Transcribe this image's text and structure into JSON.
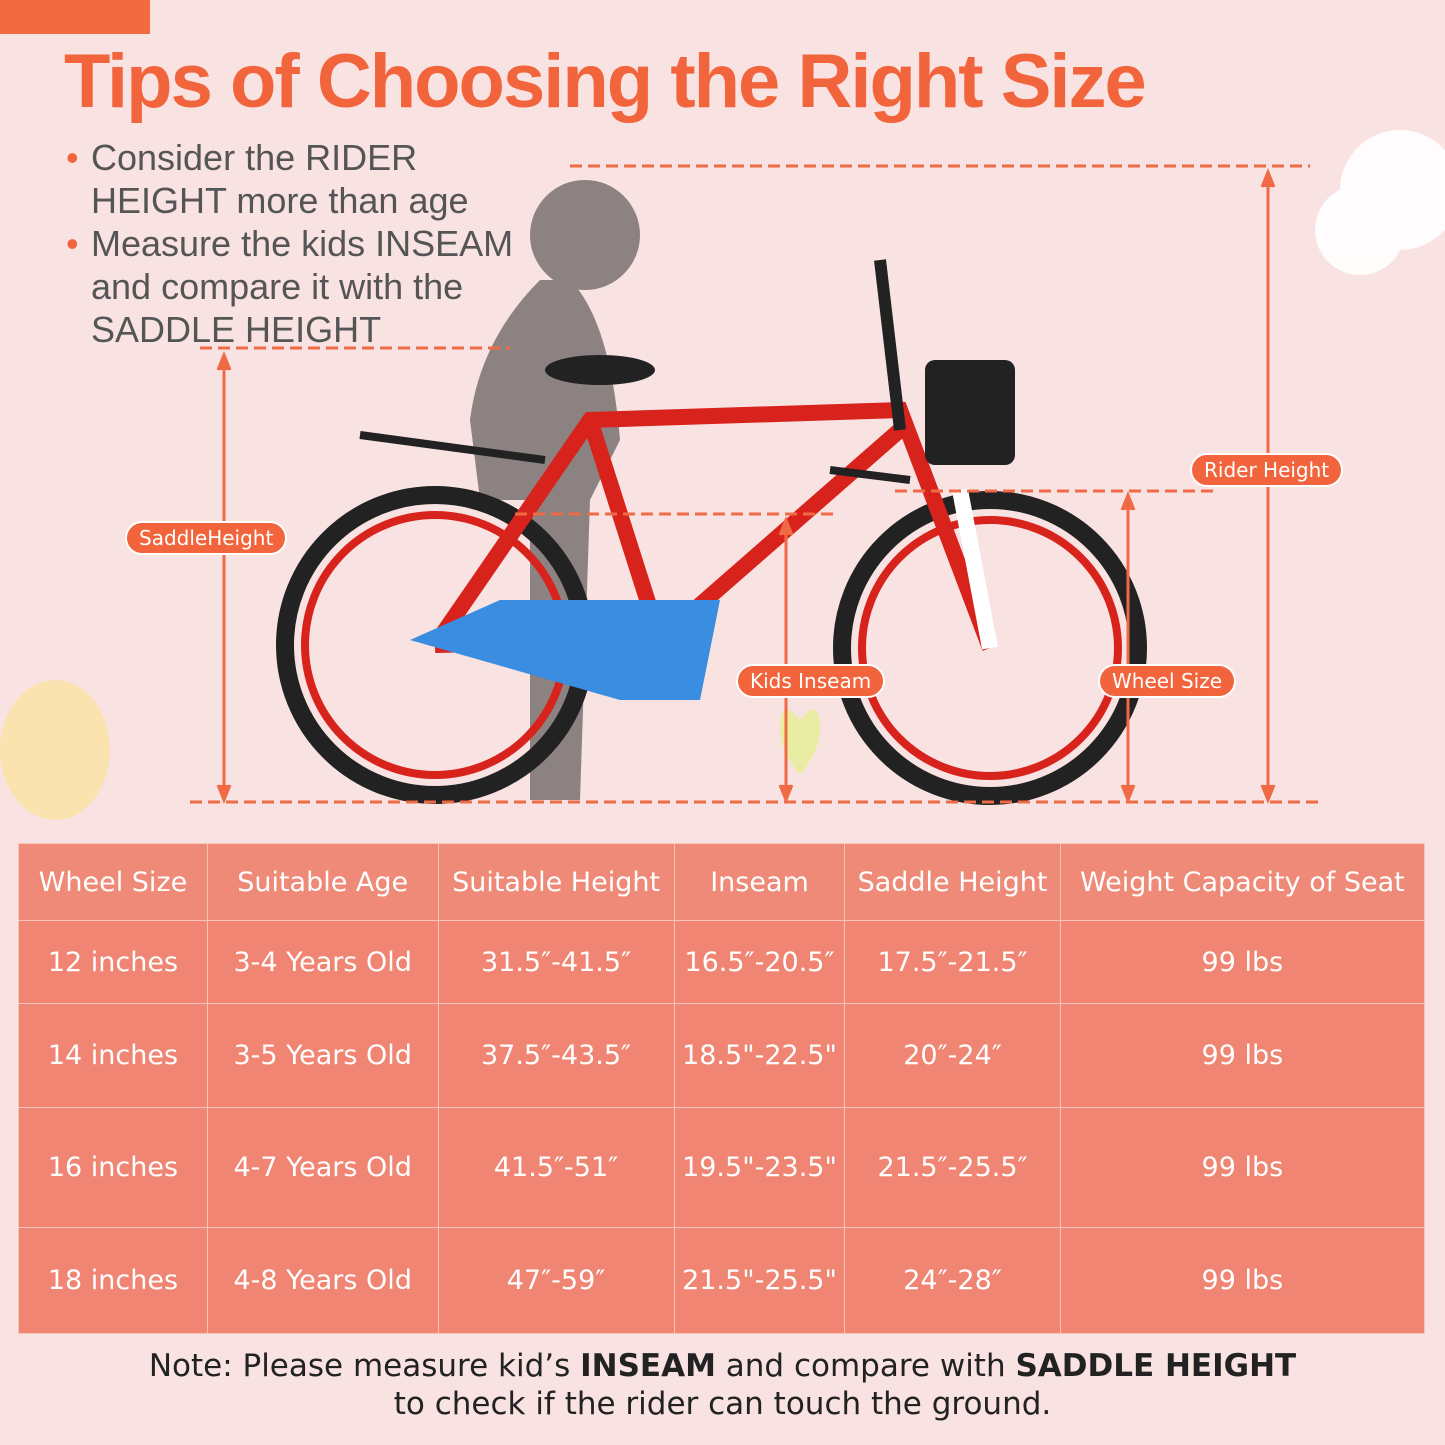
{
  "header": {
    "title": "Tips of Choosing the Right Size",
    "bullets": [
      "Consider the RIDER HEIGHT more than age",
      "Measure the kids INSEAM and compare it with the SADDLE HEIGHT"
    ]
  },
  "labels": {
    "saddle_height": "SaddleHeight",
    "kids_inseam": "Kids Inseam",
    "wheel_size": "Wheel Size",
    "rider_height": "Rider Height"
  },
  "table": {
    "header": [
      "Wheel Size",
      "Suitable Age",
      "Suitable Height",
      "Inseam",
      "Saddle Height",
      "Weight Capacity of Seat"
    ],
    "rows": [
      [
        "12 inches",
        "3-4 Years Old",
        "31.5″-41.5″",
        "16.5″-20.5″",
        "17.5″-21.5″",
        "99 lbs"
      ],
      [
        "14 inches",
        "3-5 Years Old",
        "37.5″-43.5″",
        "18.5\"-22.5\"",
        "20″-24″",
        "99 lbs"
      ],
      [
        "16 inches",
        "4-7 Years Old",
        "41.5″-51″",
        "19.5\"-23.5\"",
        "21.5″-25.5″",
        "99 lbs"
      ],
      [
        "18 inches",
        "4-8 Years Old",
        "47″-59″",
        "21.5\"-25.5\"",
        "24″-28″",
        "99 lbs"
      ]
    ]
  },
  "note": {
    "line1": [
      "Note: Please measure kid’s ",
      "INSEAM",
      " and compare with ",
      "SADDLE HEIGHT"
    ],
    "line2": "to check if the rider can touch the ground."
  }
}
